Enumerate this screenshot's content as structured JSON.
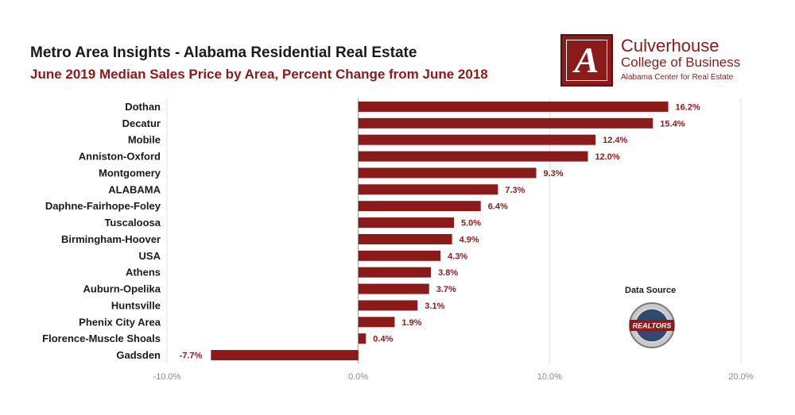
{
  "header": {
    "title": "Metro Area Insights - Alabama Residential Real Estate",
    "subtitle": "June 2019 Median Sales Price by Area, Percent Change from June 2018"
  },
  "logo": {
    "letter": "A",
    "line1": "Culverhouse",
    "line2": "College of Business",
    "line3": "Alabama Center for Real Estate"
  },
  "source": {
    "label": "Data Source",
    "seal_text": "REALTORS"
  },
  "colors": {
    "bar": "#8b1a1a",
    "label": "#8b1a1a",
    "grid": "#e0e0e0",
    "tick": "#888888"
  },
  "chart_data": {
    "type": "bar",
    "orientation": "horizontal",
    "categories": [
      "Dothan",
      "Decatur",
      "Mobile",
      "Anniston-Oxford",
      "Montgomery",
      "ALABAMA",
      "Daphne-Fairhope-Foley",
      "Tuscaloosa",
      "Birmingham-Hoover",
      "USA",
      "Athens",
      "Auburn-Opelika",
      "Huntsville",
      "Phenix City Area",
      "Florence-Muscle Shoals",
      "Gadsden"
    ],
    "values": [
      16.2,
      15.4,
      12.4,
      12.0,
      9.3,
      7.3,
      6.4,
      5.0,
      4.9,
      4.3,
      3.8,
      3.7,
      3.1,
      1.9,
      0.4,
      -7.7
    ],
    "value_labels": [
      "16.2%",
      "15.4%",
      "12.4%",
      "12.0%",
      "9.3%",
      "7.3%",
      "6.4%",
      "5.0%",
      "4.9%",
      "4.3%",
      "3.8%",
      "3.7%",
      "3.1%",
      "1.9%",
      "0.4%",
      "-7.7%"
    ],
    "xlim": [
      -10,
      20
    ],
    "xticks": [
      -10,
      0,
      10,
      20
    ],
    "xtick_labels": [
      "-10.0%",
      "0.0%",
      "10.0%",
      "20.0%"
    ],
    "grid": true
  }
}
